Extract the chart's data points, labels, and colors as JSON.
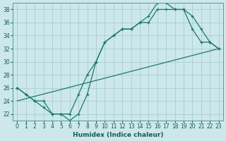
{
  "xlabel": "Humidex (Indice chaleur)",
  "xlim": [
    -0.5,
    23.5
  ],
  "ylim": [
    21,
    39
  ],
  "yticks": [
    22,
    24,
    26,
    28,
    30,
    32,
    34,
    36,
    38
  ],
  "xticks": [
    0,
    1,
    2,
    3,
    4,
    5,
    6,
    7,
    8,
    9,
    10,
    11,
    12,
    13,
    14,
    15,
    16,
    17,
    18,
    19,
    20,
    21,
    22,
    23
  ],
  "background_color": "#cce8ea",
  "grid_color": "#aacdd2",
  "line_color": "#1a7a6e",
  "line1_x": [
    0,
    1,
    2,
    3,
    4,
    5,
    6,
    7,
    8,
    9,
    10,
    11,
    12,
    13,
    14,
    15,
    16,
    17,
    18,
    19,
    20,
    21,
    22,
    23
  ],
  "line1_y": [
    26,
    25,
    24,
    24,
    22,
    22,
    22,
    25,
    28,
    30,
    33,
    34,
    35,
    35,
    36,
    36,
    38,
    38,
    38,
    38,
    37,
    35,
    33,
    32
  ],
  "line2_x": [
    0,
    1,
    2,
    3,
    4,
    5,
    6,
    7,
    8,
    9,
    10,
    11,
    12,
    13,
    14,
    15,
    16,
    17,
    18,
    19,
    20,
    21,
    22,
    23
  ],
  "line2_y": [
    26,
    25,
    24,
    23,
    22,
    22,
    21,
    22,
    25,
    30,
    33,
    34,
    35,
    35,
    36,
    37,
    39,
    39,
    38,
    38,
    35,
    33,
    33,
    32
  ],
  "line3_x": [
    0,
    23
  ],
  "line3_y": [
    24,
    32
  ]
}
